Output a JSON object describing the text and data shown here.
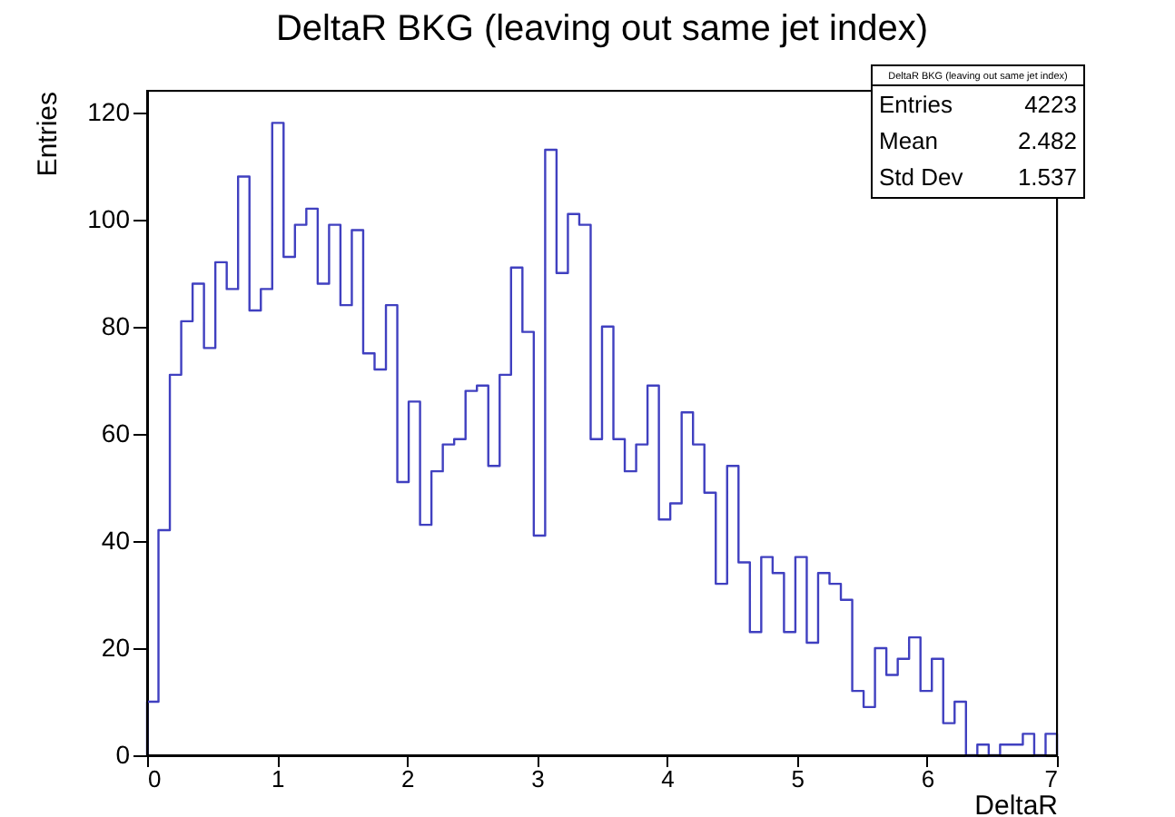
{
  "chart_data": {
    "type": "histogram",
    "title": "DeltaR BKG (leaving out same jet index)",
    "xlabel": "DeltaR",
    "ylabel": "Entries",
    "bins": [
      0,
      0.0875,
      0.175,
      0.2625,
      0.35,
      0.4375,
      0.525,
      0.6125,
      0.7,
      0.7875,
      0.875,
      0.9625,
      1.05,
      1.1375,
      1.225,
      1.3125,
      1.4,
      1.4875,
      1.575,
      1.6625,
      1.75,
      1.8375,
      1.925,
      2.0125,
      2.1,
      2.1875,
      2.275,
      2.3625,
      2.45,
      2.5375,
      2.625,
      2.7125,
      2.8,
      2.8875,
      2.975,
      3.0625,
      3.15,
      3.2375,
      3.325,
      3.4125,
      3.5,
      3.5875,
      3.675,
      3.7625,
      3.85,
      3.9375,
      4.025,
      4.1125,
      4.2,
      4.2875,
      4.375,
      4.4625,
      4.55,
      4.6375,
      4.725,
      4.8125,
      4.9,
      4.9875,
      5.075,
      5.1625,
      5.25,
      5.3375,
      5.425,
      5.5125,
      5.6,
      5.6875,
      5.775,
      5.8625,
      5.95,
      6.0375,
      6.125,
      6.2125,
      6.3,
      6.3875,
      6.475,
      6.5625,
      6.65,
      6.7375,
      6.825,
      6.9125,
      7
    ],
    "values": [
      10,
      42,
      71,
      81,
      88,
      76,
      92,
      87,
      108,
      83,
      87,
      118,
      93,
      99,
      102,
      88,
      99,
      84,
      98,
      75,
      72,
      84,
      51,
      66,
      43,
      53,
      58,
      59,
      68,
      69,
      54,
      71,
      91,
      79,
      41,
      113,
      90,
      101,
      99,
      59,
      80,
      59,
      53,
      58,
      69,
      44,
      47,
      64,
      58,
      49,
      32,
      54,
      36,
      23,
      37,
      34,
      23,
      37,
      21,
      34,
      32,
      29,
      12,
      9,
      20,
      15,
      18,
      22,
      12,
      18,
      6,
      10,
      0,
      2,
      0,
      2,
      2,
      4,
      0,
      4
    ],
    "color": "#4040c0",
    "xlim": [
      0,
      7
    ],
    "xticks": [
      0,
      1,
      2,
      3,
      4,
      5,
      6,
      7
    ],
    "ylim": [
      0,
      124
    ],
    "yticks": [
      0,
      20,
      40,
      60,
      80,
      100,
      120
    ],
    "grid": false,
    "annotations": [
      "DeltaR BKG (leaving out same jet index)",
      "Entries",
      "4223",
      "Mean",
      "2.482",
      "Std Dev",
      "1.537"
    ]
  }
}
